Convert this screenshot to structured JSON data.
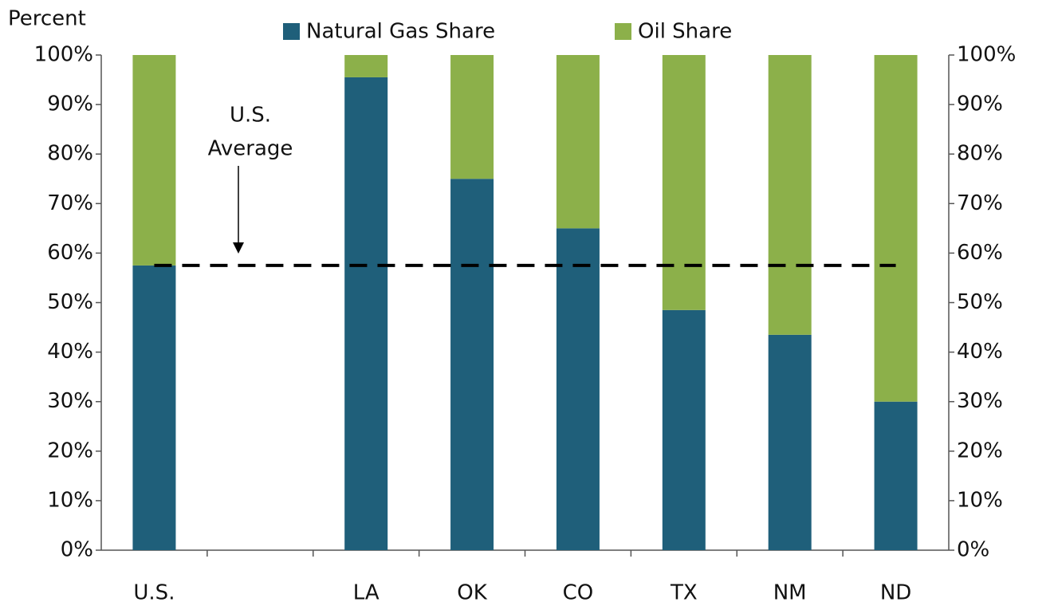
{
  "chart_data": {
    "type": "stacked_bar",
    "y_axis_label": "Percent",
    "categories": [
      "U.S.",
      null,
      "LA",
      "OK",
      "CO",
      "TX",
      "NM",
      "ND"
    ],
    "series": [
      {
        "name": "Natural Gas Share",
        "color": "#1f5f7a",
        "values": [
          57.5,
          null,
          95.5,
          75,
          65,
          48.5,
          43.5,
          30
        ]
      },
      {
        "name": "Oil Share",
        "color": "#8cb04a",
        "values": [
          42.5,
          null,
          4.5,
          25,
          35,
          51.5,
          56.5,
          70
        ]
      }
    ],
    "ylim": [
      0,
      100
    ],
    "yticks": [
      {
        "value": 0,
        "label": "0%"
      },
      {
        "value": 10,
        "label": "10%"
      },
      {
        "value": 20,
        "label": "20%"
      },
      {
        "value": 30,
        "label": "30%"
      },
      {
        "value": 40,
        "label": "40%"
      },
      {
        "value": 50,
        "label": "50%"
      },
      {
        "value": 60,
        "label": "60%"
      },
      {
        "value": 70,
        "label": "70%"
      },
      {
        "value": 80,
        "label": "80%"
      },
      {
        "value": 90,
        "label": "90%"
      },
      {
        "value": 100,
        "label": "100%"
      }
    ],
    "y2lim": [
      0,
      100
    ],
    "y2ticks": [
      {
        "value": 0,
        "label": "0%"
      },
      {
        "value": 10,
        "label": "10%"
      },
      {
        "value": 20,
        "label": "20%"
      },
      {
        "value": 30,
        "label": "30%"
      },
      {
        "value": 40,
        "label": "40%"
      },
      {
        "value": 50,
        "label": "50%"
      },
      {
        "value": 60,
        "label": "60%"
      },
      {
        "value": 70,
        "label": "70%"
      },
      {
        "value": 80,
        "label": "80%"
      },
      {
        "value": 90,
        "label": "90%"
      },
      {
        "value": 100,
        "label": "100%"
      }
    ],
    "reference_line": {
      "value": 57.5,
      "label_lines": [
        "U.S.",
        "Average"
      ],
      "color": "#000000"
    },
    "legend": "top"
  }
}
